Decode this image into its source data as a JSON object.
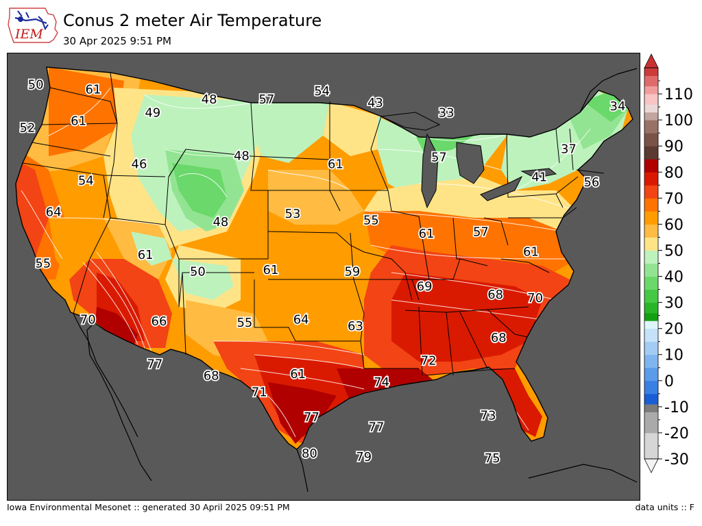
{
  "header": {
    "logo_text": "IEM",
    "title": "Conus 2 meter Air Temperature",
    "subtitle": "30 Apr 2025 9:51 PM"
  },
  "footer": {
    "left": "Iowa Environmental Mesonet :: generated 30 April 2025 09:51 PM",
    "right": "data units :: F"
  },
  "colors": {
    "ocean": "#595959",
    "border_line": "#000000",
    "contour_line": "#ffffff"
  },
  "colorbar": {
    "tick_labels": [
      "110",
      "100",
      "90",
      "80",
      "70",
      "60",
      "50",
      "40",
      "30",
      "20",
      "10",
      "0",
      "-10",
      "-20",
      "-30"
    ],
    "bands": [
      {
        "from": -30,
        "to": -20,
        "color": "#d6d6d6"
      },
      {
        "from": -20,
        "to": -12,
        "color": "#aaaaaa"
      },
      {
        "from": -12,
        "to": -9,
        "color": "#7c7c7c"
      },
      {
        "from": -9,
        "to": -5,
        "color": "#1a5ed6"
      },
      {
        "from": -5,
        "to": 0,
        "color": "#3a7fe3"
      },
      {
        "from": 0,
        "to": 5,
        "color": "#5a9bea"
      },
      {
        "from": 5,
        "to": 10,
        "color": "#7fb5ef"
      },
      {
        "from": 10,
        "to": 15,
        "color": "#a2ccf4"
      },
      {
        "from": 15,
        "to": 20,
        "color": "#c4e2f9"
      },
      {
        "from": 20,
        "to": 23,
        "color": "#def6fb"
      },
      {
        "from": 23,
        "to": 26,
        "color": "#12a012"
      },
      {
        "from": 26,
        "to": 30,
        "color": "#28b628"
      },
      {
        "from": 30,
        "to": 35,
        "color": "#45c945"
      },
      {
        "from": 35,
        "to": 40,
        "color": "#6ad86a"
      },
      {
        "from": 40,
        "to": 45,
        "color": "#92e492"
      },
      {
        "from": 45,
        "to": 50,
        "color": "#bdf2bd"
      },
      {
        "from": 50,
        "to": 55,
        "color": "#ffe487"
      },
      {
        "from": 55,
        "to": 60,
        "color": "#ffbb42"
      },
      {
        "from": 60,
        "to": 65,
        "color": "#ff9c00"
      },
      {
        "from": 65,
        "to": 70,
        "color": "#ff7300"
      },
      {
        "from": 70,
        "to": 75,
        "color": "#f24414"
      },
      {
        "from": 75,
        "to": 80,
        "color": "#d91a00"
      },
      {
        "from": 80,
        "to": 85,
        "color": "#b00000"
      },
      {
        "from": 85,
        "to": 90,
        "color": "#5b3a31"
      },
      {
        "from": 90,
        "to": 95,
        "color": "#7b5247"
      },
      {
        "from": 95,
        "to": 100,
        "color": "#9a7166"
      },
      {
        "from": 100,
        "to": 103,
        "color": "#c2a59f"
      },
      {
        "from": 103,
        "to": 106,
        "color": "#ead8d8"
      },
      {
        "from": 106,
        "to": 110,
        "color": "#f8c4c4"
      },
      {
        "from": 110,
        "to": 113,
        "color": "#f19d9d"
      },
      {
        "from": 113,
        "to": 117,
        "color": "#e06a6a"
      },
      {
        "from": 117,
        "to": 120,
        "color": "#cc3a3a"
      }
    ]
  },
  "station_values": [
    {
      "value": "50",
      "lon": -123.8,
      "lat": 48.2
    },
    {
      "value": "61",
      "lon": -118.3,
      "lat": 47.9
    },
    {
      "value": "52",
      "lon": -124.6,
      "lat": 45.6
    },
    {
      "value": "61",
      "lon": -119.7,
      "lat": 46.0
    },
    {
      "value": "49",
      "lon": -112.6,
      "lat": 46.5
    },
    {
      "value": "48",
      "lon": -107.2,
      "lat": 47.3
    },
    {
      "value": "57",
      "lon": -101.7,
      "lat": 47.3
    },
    {
      "value": "54",
      "lon": -96.4,
      "lat": 47.8
    },
    {
      "value": "43",
      "lon": -91.3,
      "lat": 47.1
    },
    {
      "value": "33",
      "lon": -84.5,
      "lat": 46.5
    },
    {
      "value": "34",
      "lon": -68.1,
      "lat": 46.9
    },
    {
      "value": "37",
      "lon": -72.8,
      "lat": 44.3
    },
    {
      "value": "46",
      "lon": -113.9,
      "lat": 43.4
    },
    {
      "value": "48",
      "lon": -104.1,
      "lat": 43.9
    },
    {
      "value": "61",
      "lon": -95.1,
      "lat": 43.4
    },
    {
      "value": "57",
      "lon": -85.2,
      "lat": 43.8
    },
    {
      "value": "41",
      "lon": -75.6,
      "lat": 42.6
    },
    {
      "value": "56",
      "lon": -70.6,
      "lat": 42.3
    },
    {
      "value": "54",
      "lon": -119.0,
      "lat": 42.4
    },
    {
      "value": "64",
      "lon": -122.1,
      "lat": 40.5
    },
    {
      "value": "53",
      "lon": -99.2,
      "lat": 40.4
    },
    {
      "value": "55",
      "lon": -91.7,
      "lat": 40.0
    },
    {
      "value": "48",
      "lon": -106.1,
      "lat": 39.9
    },
    {
      "value": "61",
      "lon": -86.4,
      "lat": 39.2
    },
    {
      "value": "57",
      "lon": -81.2,
      "lat": 39.3
    },
    {
      "value": "61",
      "lon": -76.4,
      "lat": 38.1
    },
    {
      "value": "55",
      "lon": -123.1,
      "lat": 37.4
    },
    {
      "value": "61",
      "lon": -113.3,
      "lat": 37.9
    },
    {
      "value": "50",
      "lon": -108.3,
      "lat": 36.9
    },
    {
      "value": "61",
      "lon": -101.3,
      "lat": 37.0
    },
    {
      "value": "59",
      "lon": -93.5,
      "lat": 36.9
    },
    {
      "value": "69",
      "lon": -86.6,
      "lat": 36.0
    },
    {
      "value": "68",
      "lon": -79.8,
      "lat": 35.5
    },
    {
      "value": "70",
      "lon": -76.0,
      "lat": 35.3
    },
    {
      "value": "70",
      "lon": -118.8,
      "lat": 34.0
    },
    {
      "value": "66",
      "lon": -112.0,
      "lat": 33.9
    },
    {
      "value": "55",
      "lon": -103.8,
      "lat": 33.8
    },
    {
      "value": "64",
      "lon": -98.4,
      "lat": 34.0
    },
    {
      "value": "63",
      "lon": -93.2,
      "lat": 33.6
    },
    {
      "value": "68",
      "lon": -79.5,
      "lat": 32.9
    },
    {
      "value": "77",
      "lon": -112.4,
      "lat": 31.3
    },
    {
      "value": "68",
      "lon": -107.0,
      "lat": 30.6
    },
    {
      "value": "61",
      "lon": -98.7,
      "lat": 30.7
    },
    {
      "value": "72",
      "lon": -86.2,
      "lat": 31.5
    },
    {
      "value": "71",
      "lon": -102.4,
      "lat": 29.6
    },
    {
      "value": "74",
      "lon": -90.7,
      "lat": 30.2
    },
    {
      "value": "77",
      "lon": -97.4,
      "lat": 28.1
    },
    {
      "value": "73",
      "lon": -80.5,
      "lat": 28.2
    },
    {
      "value": "77",
      "lon": -91.2,
      "lat": 27.5
    },
    {
      "value": "80",
      "lon": -97.6,
      "lat": 25.9
    },
    {
      "value": "79",
      "lon": -92.4,
      "lat": 25.7
    },
    {
      "value": "75",
      "lon": -80.1,
      "lat": 25.6
    }
  ]
}
